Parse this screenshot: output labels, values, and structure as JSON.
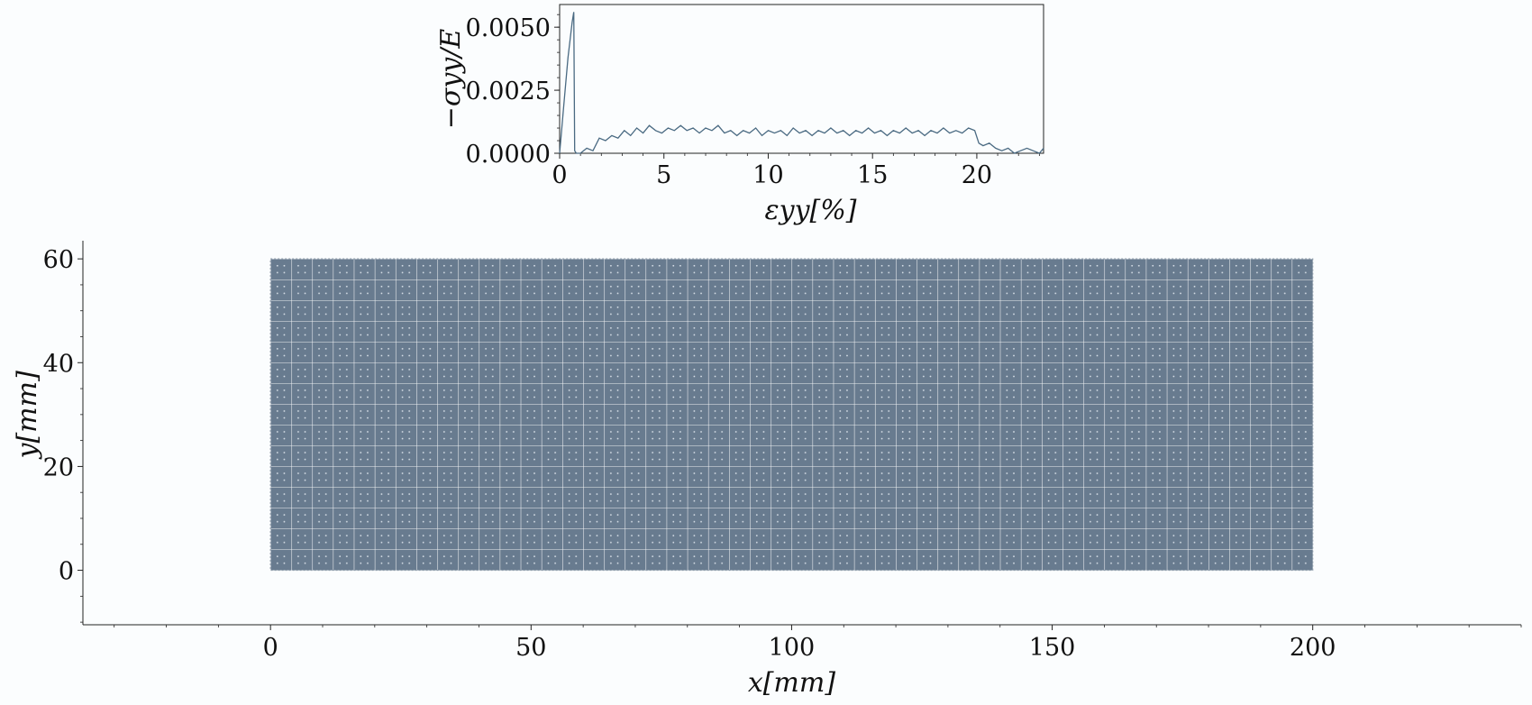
{
  "chart_data": [
    {
      "type": "line",
      "ylabel": "−σyy/E",
      "xlabel": "εyy[%]",
      "xlim": [
        0,
        23.2
      ],
      "ylim": [
        0,
        0.0059
      ],
      "xticks": [
        "0",
        "5",
        "10",
        "15",
        "20"
      ],
      "xtick_values": [
        0,
        5,
        10,
        15,
        20
      ],
      "yticks": [
        "0.0000",
        "0.0025",
        "0.0050"
      ],
      "ytick_values": [
        0,
        0.0025,
        0.005
      ],
      "grid": false,
      "line_color": "#4a6a82",
      "series": [
        {
          "x": [
            0,
            0.2,
            0.4,
            0.6,
            0.68,
            0.72,
            0.8,
            1.0,
            1.3,
            1.6,
            1.9,
            2.2,
            2.5,
            2.8,
            3.1,
            3.4,
            3.7,
            4.0,
            4.3,
            4.6,
            4.9,
            5.2,
            5.5,
            5.8,
            6.1,
            6.4,
            6.7,
            7.0,
            7.3,
            7.6,
            7.9,
            8.2,
            8.5,
            8.8,
            9.1,
            9.4,
            9.7,
            10.0,
            10.3,
            10.6,
            10.9,
            11.2,
            11.5,
            11.8,
            12.1,
            12.4,
            12.7,
            13.0,
            13.3,
            13.6,
            13.9,
            14.2,
            14.5,
            14.8,
            15.1,
            15.4,
            15.7,
            16.0,
            16.3,
            16.6,
            16.9,
            17.2,
            17.5,
            17.8,
            18.1,
            18.4,
            18.7,
            19.0,
            19.3,
            19.6,
            19.9,
            20.1,
            20.3,
            20.6,
            20.9,
            21.2,
            21.5,
            21.8,
            22.1,
            22.4,
            22.7,
            23.0,
            23.2
          ],
          "y": [
            0,
            0.0019,
            0.0038,
            0.0052,
            0.0056,
            0.0001,
            0.0,
            0.0,
            0.0002,
            0.0001,
            0.0006,
            0.0005,
            0.0007,
            0.0006,
            0.0009,
            0.0007,
            0.001,
            0.0008,
            0.0011,
            0.0009,
            0.0008,
            0.001,
            0.0009,
            0.0011,
            0.0009,
            0.001,
            0.0008,
            0.001,
            0.0009,
            0.0011,
            0.0008,
            0.0009,
            0.0007,
            0.0009,
            0.0008,
            0.001,
            0.0007,
            0.0009,
            0.0008,
            0.0009,
            0.0007,
            0.001,
            0.0008,
            0.0009,
            0.0007,
            0.0009,
            0.0008,
            0.001,
            0.0008,
            0.0009,
            0.0007,
            0.0009,
            0.0008,
            0.001,
            0.0008,
            0.0009,
            0.0007,
            0.0009,
            0.0008,
            0.001,
            0.0008,
            0.0009,
            0.0007,
            0.0009,
            0.0008,
            0.001,
            0.0008,
            0.0009,
            0.0008,
            0.001,
            0.0009,
            0.0004,
            0.0003,
            0.0004,
            0.0002,
            0.0001,
            0.0002,
            0.0,
            0.0001,
            0.0002,
            0.0001,
            0.0,
            0.0002
          ]
        }
      ]
    },
    {
      "type": "scatter",
      "description_kind": "particle-mesh",
      "xlabel": "x[mm]",
      "ylabel": "y[mm]",
      "xlim": [
        -36,
        240
      ],
      "ylim": [
        -10.5,
        63.5
      ],
      "xticks": [
        "0",
        "50",
        "100",
        "150",
        "200"
      ],
      "xtick_values": [
        0,
        50,
        100,
        150,
        200
      ],
      "yticks": [
        "0",
        "20",
        "40",
        "60"
      ],
      "ytick_values": [
        0,
        20,
        40,
        60
      ],
      "x_minor_step": 10,
      "y_minor_step": 5,
      "grid": false,
      "mesh_extent_x": [
        0,
        200
      ],
      "mesh_extent_y": [
        0,
        60
      ],
      "mesh_cell_size": 4,
      "fill_color": "#687b8f",
      "line_color": "#ffffff",
      "dot_color": "#d8e0e8"
    }
  ]
}
